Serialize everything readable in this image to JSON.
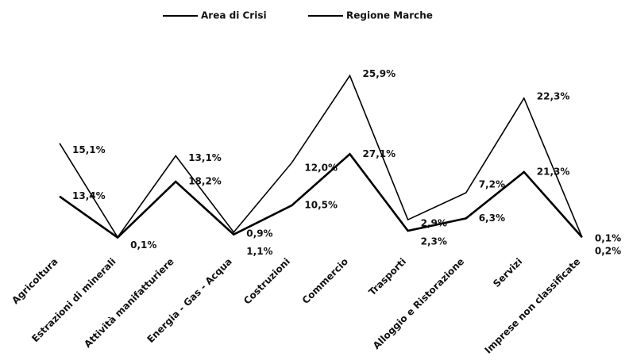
{
  "chart_data": {
    "type": "line",
    "categories": [
      "Agricoltura",
      "Estrazioni di minerali",
      "Attività manifatturiere",
      "Energia - Gas - Acqua",
      "Costruzioni",
      "Commercio",
      "Trasporti",
      "Alloggio e Ristorazione",
      "Servizi",
      "Imprese non classificate"
    ],
    "series": [
      {
        "name": "Area di Crisi",
        "color": "#000000",
        "values": [
          15.1,
          0.1,
          13.1,
          0.9,
          12.0,
          25.9,
          2.9,
          7.2,
          22.3,
          0.1
        ],
        "value_labels": [
          "15,1%",
          null,
          "13,1%",
          "0,9%",
          "12,0%",
          "25,9%",
          "2,9%",
          "7,2%",
          "22,3%",
          "0,1%"
        ]
      },
      {
        "name": "Regione Marche",
        "color": "#000000",
        "values": [
          13.4,
          0.1,
          18.2,
          1.1,
          10.5,
          27.1,
          2.3,
          6.3,
          21.3,
          0.2
        ],
        "value_labels": [
          "13,4%",
          "0,1%",
          "18,2%",
          "1,1%",
          "10,5%",
          "27,1%",
          "2,3%",
          "6,3%",
          "21,3%",
          "0,2%"
        ]
      }
    ],
    "legend": "top"
  }
}
